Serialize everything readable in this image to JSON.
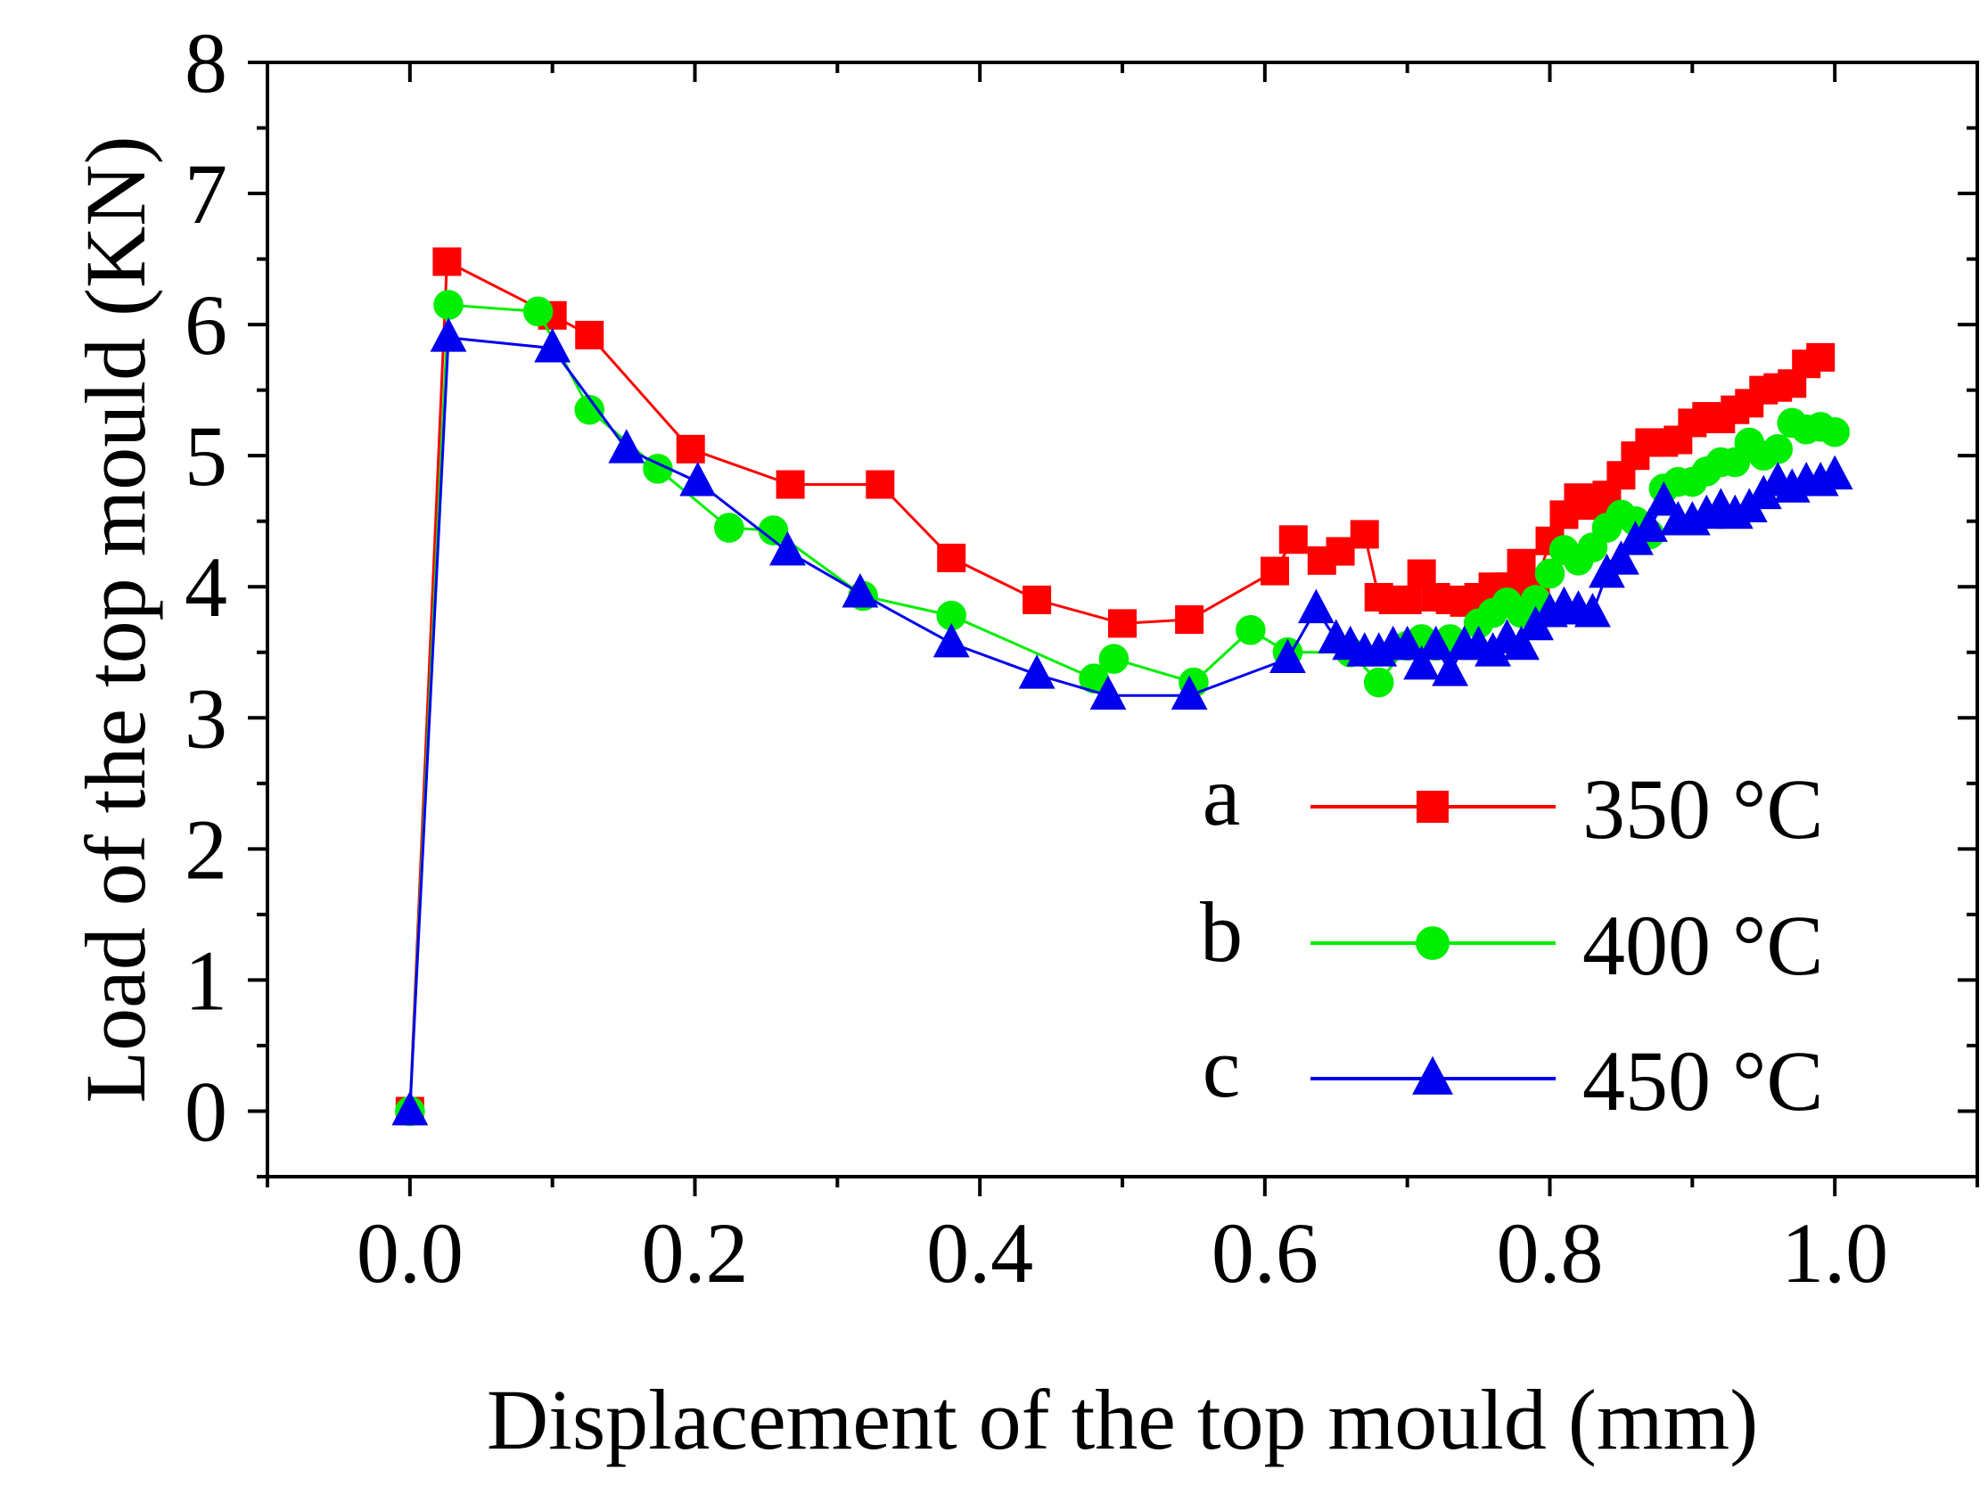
{
  "chart_data": {
    "type": "line",
    "title": "",
    "xlabel": "Displacement of the top mould (mm)",
    "ylabel": "Load of the top mould (KN)",
    "xlim": [
      -0.1,
      1.1
    ],
    "ylim": [
      -0.5,
      8
    ],
    "xticks": [
      0.0,
      0.2,
      0.4,
      0.6,
      0.8,
      1.0
    ],
    "xtick_labels": [
      "0.0",
      "0.2",
      "0.4",
      "0.6",
      "0.8",
      "1.0"
    ],
    "yticks": [
      0,
      1,
      2,
      3,
      4,
      5,
      6,
      7,
      8
    ],
    "ytick_labels": [
      "0",
      "1",
      "2",
      "3",
      "4",
      "5",
      "6",
      "7",
      "8"
    ],
    "grid": false,
    "legend_position": "bottom-right",
    "series": [
      {
        "name": "350 °C",
        "letter": "a",
        "color": "#ff0000",
        "marker": "square",
        "x": [
          0.0,
          0.026,
          0.1,
          0.126,
          0.197,
          0.267,
          0.33,
          0.38,
          0.44,
          0.5,
          0.547,
          0.607,
          0.62,
          0.64,
          0.653,
          0.67,
          0.68,
          0.69,
          0.7,
          0.71,
          0.72,
          0.73,
          0.74,
          0.75,
          0.76,
          0.77,
          0.78,
          0.79,
          0.8,
          0.81,
          0.82,
          0.83,
          0.84,
          0.85,
          0.86,
          0.87,
          0.88,
          0.89,
          0.9,
          0.91,
          0.92,
          0.93,
          0.94,
          0.95,
          0.96,
          0.97,
          0.98,
          0.99
        ],
        "y": [
          0.0,
          6.48,
          6.07,
          5.92,
          5.05,
          4.78,
          4.78,
          4.22,
          3.9,
          3.72,
          3.75,
          4.12,
          4.36,
          4.2,
          4.27,
          4.4,
          3.92,
          3.9,
          3.9,
          4.1,
          3.92,
          3.9,
          3.88,
          3.92,
          4.0,
          4.0,
          4.18,
          4.0,
          4.35,
          4.55,
          4.68,
          4.62,
          4.7,
          4.85,
          5.0,
          5.1,
          5.1,
          5.12,
          5.25,
          5.3,
          5.28,
          5.35,
          5.4,
          5.5,
          5.52,
          5.55,
          5.7,
          5.75
        ]
      },
      {
        "name": "400 °C",
        "letter": "b",
        "color": "#00ee00",
        "marker": "circle",
        "x": [
          0.0,
          0.027,
          0.09,
          0.126,
          0.174,
          0.224,
          0.255,
          0.318,
          0.38,
          0.48,
          0.494,
          0.55,
          0.59,
          0.616,
          0.66,
          0.68,
          0.7,
          0.71,
          0.72,
          0.73,
          0.75,
          0.76,
          0.77,
          0.78,
          0.79,
          0.8,
          0.81,
          0.82,
          0.83,
          0.84,
          0.85,
          0.86,
          0.87,
          0.88,
          0.89,
          0.9,
          0.91,
          0.92,
          0.93,
          0.94,
          0.95,
          0.96,
          0.97,
          0.98,
          0.99,
          1.0
        ],
        "y": [
          0.0,
          6.15,
          6.1,
          5.35,
          4.9,
          4.45,
          4.43,
          3.93,
          3.78,
          3.3,
          3.45,
          3.27,
          3.67,
          3.5,
          3.5,
          3.27,
          3.55,
          3.6,
          3.55,
          3.6,
          3.72,
          3.8,
          3.88,
          3.8,
          3.9,
          4.1,
          4.28,
          4.2,
          4.3,
          4.45,
          4.55,
          4.5,
          4.4,
          4.75,
          4.8,
          4.8,
          4.88,
          4.95,
          4.95,
          5.1,
          5.0,
          5.05,
          5.25,
          5.2,
          5.22,
          5.18
        ]
      },
      {
        "name": "450 °C",
        "letter": "c",
        "color": "#0000ee",
        "marker": "triangle",
        "x": [
          0.0,
          0.027,
          0.1,
          0.152,
          0.202,
          0.265,
          0.316,
          0.38,
          0.44,
          0.49,
          0.547,
          0.616,
          0.636,
          0.65,
          0.66,
          0.67,
          0.68,
          0.69,
          0.7,
          0.71,
          0.72,
          0.73,
          0.74,
          0.75,
          0.76,
          0.77,
          0.78,
          0.79,
          0.8,
          0.81,
          0.82,
          0.83,
          0.84,
          0.85,
          0.86,
          0.87,
          0.88,
          0.89,
          0.9,
          0.91,
          0.92,
          0.93,
          0.94,
          0.95,
          0.96,
          0.97,
          0.98,
          0.99,
          1.0
        ],
        "y": [
          0.0,
          5.9,
          5.82,
          5.05,
          4.8,
          4.27,
          3.95,
          3.57,
          3.33,
          3.17,
          3.17,
          3.45,
          3.83,
          3.6,
          3.55,
          3.5,
          3.5,
          3.55,
          3.55,
          3.4,
          3.55,
          3.35,
          3.55,
          3.55,
          3.5,
          3.6,
          3.55,
          3.7,
          3.8,
          3.85,
          3.82,
          3.8,
          4.1,
          4.2,
          4.35,
          4.45,
          4.65,
          4.5,
          4.5,
          4.55,
          4.6,
          4.55,
          4.6,
          4.7,
          4.8,
          4.75,
          4.8,
          4.8,
          4.85
        ]
      }
    ]
  }
}
